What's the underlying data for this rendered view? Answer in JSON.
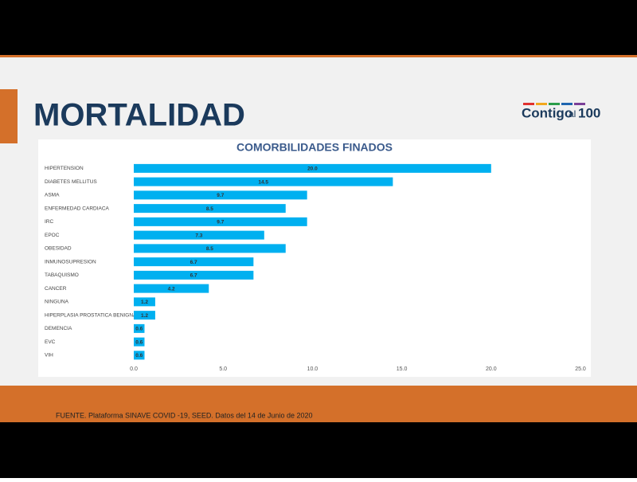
{
  "header": {
    "title": "MORTALIDAD",
    "logo": [
      "Contigo",
      "al",
      "100"
    ]
  },
  "footer": {
    "source": "FUENTE. Plataforma SINAVE COVID -19, SEED. Datos del 14 de Junio de 2020"
  },
  "chart_data": {
    "type": "hbar",
    "title": "COMORBILIDADES FINADOS",
    "categories": [
      "HIPERTENSION",
      "DIABETES MELLITUS",
      "ASMA",
      "ENFERMEDAD CARDIACA",
      "IRC",
      "EPOC",
      "OBESIDAD",
      "INMUNOSUPRESION",
      "TABAQUISMO",
      "CANCER",
      "NINGUNA",
      "HIPERPLASIA PROSTATICA BENIGNA",
      "DEMENCIA",
      "EVC",
      "VIH"
    ],
    "values": [
      20.0,
      14.5,
      9.7,
      8.5,
      9.7,
      7.3,
      8.5,
      6.7,
      6.7,
      4.2,
      1.2,
      1.2,
      0.6,
      0.6,
      0.6
    ],
    "value_labels": [
      "20.0",
      "14.5",
      "9.7",
      "8.5",
      "9.7",
      "7.3",
      "8.5",
      "6.7",
      "6.7",
      "4.2",
      "1.2",
      "1.2",
      "0.6",
      "0.6",
      "0.6"
    ],
    "color": "#00b0f0",
    "xlim": [
      0,
      25
    ],
    "xticks": [
      {
        "value": 0,
        "label": "0.0"
      },
      {
        "value": 5,
        "label": "5.0"
      },
      {
        "value": 10,
        "label": "10.0"
      },
      {
        "value": 15,
        "label": "15.0"
      },
      {
        "value": 20,
        "label": "20.0"
      },
      {
        "value": 25,
        "label": "25.0"
      }
    ],
    "grid": false
  }
}
